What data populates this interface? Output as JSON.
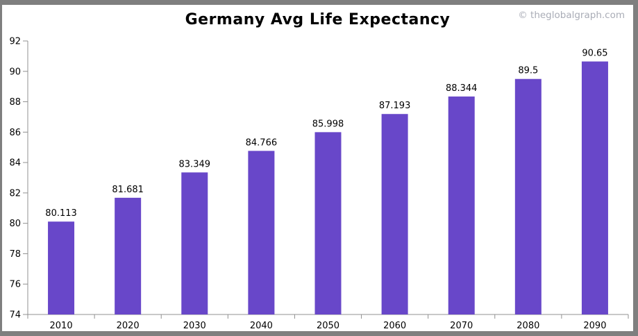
{
  "header": {
    "title": "Germany Avg Life Expectancy",
    "watermark": "© theglobalgraph.com"
  },
  "chart_data": {
    "type": "bar",
    "title": "Germany Avg Life Expectancy",
    "categories": [
      "2010",
      "2020",
      "2030",
      "2040",
      "2050",
      "2060",
      "2070",
      "2080",
      "2090"
    ],
    "values": [
      80.113,
      81.681,
      83.349,
      84.766,
      85.998,
      87.193,
      88.344,
      89.5,
      90.65
    ],
    "value_labels": [
      "80.113",
      "81.681",
      "83.349",
      "84.766",
      "85.998",
      "87.193",
      "88.344",
      "89.5",
      "90.65"
    ],
    "xlabel": "",
    "ylabel": "",
    "ylim": [
      74,
      92
    ],
    "ytick_step": 2,
    "grid": false,
    "legend": false,
    "colors": {
      "bar": "#6847c9",
      "axis": "#909090",
      "label_text": "#000000",
      "frame_border": "#7f7f7f",
      "watermark_text": "#a9acb6"
    }
  }
}
